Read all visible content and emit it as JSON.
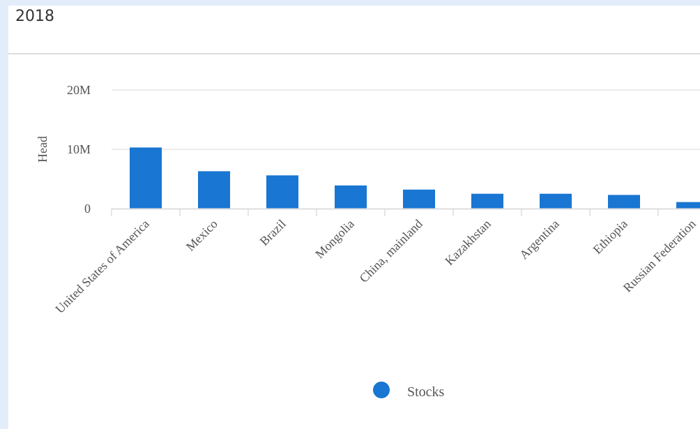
{
  "panel": {
    "title": "2018"
  },
  "chart_data": {
    "type": "bar",
    "ylabel": "Head",
    "xlabel": "",
    "ylim": [
      0,
      20000000
    ],
    "yticks": [
      {
        "value": 0,
        "label": "0"
      },
      {
        "value": 10000000,
        "label": "10M"
      },
      {
        "value": 20000000,
        "label": "20M"
      }
    ],
    "grid": true,
    "legend_position": "bottom-center",
    "categories": [
      "United States of America",
      "Mexico",
      "Brazil",
      "Mongolia",
      "China, mainland",
      "Kazakhstan",
      "Argentina",
      "Ethiopia",
      "Russian Federation"
    ],
    "series": [
      {
        "name": "Stocks",
        "color": "#1976d2",
        "values": [
          10300000,
          6300000,
          5600000,
          3900000,
          3200000,
          2500000,
          2500000,
          2300000,
          1100000
        ]
      }
    ]
  }
}
